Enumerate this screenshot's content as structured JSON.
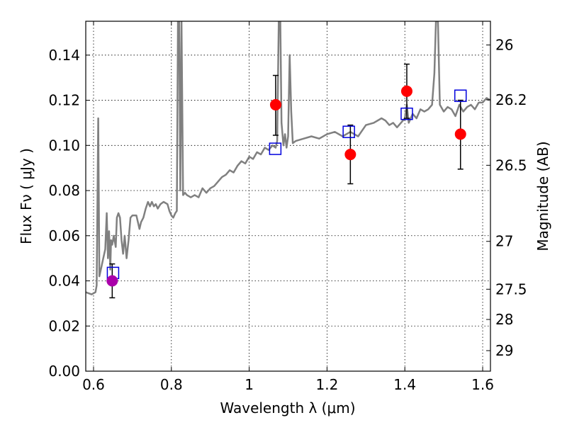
{
  "chart_data": {
    "type": "scatter",
    "title": "",
    "xlabel": "Wavelength  λ (μm)",
    "ylabel": "Flux  Fν  ( μJy )",
    "ylabel_right": "Magnitude (AB)",
    "xlim": [
      0.58,
      1.62
    ],
    "ylim": [
      0.0,
      0.155
    ],
    "x_ticks": [
      0.6,
      0.8,
      1.0,
      1.2,
      1.4,
      1.6
    ],
    "x_tick_labels": [
      "0.6",
      "0.8",
      "1",
      "1.2",
      "1.4",
      "1.6"
    ],
    "y_ticks": [
      0.0,
      0.02,
      0.04,
      0.06,
      0.08,
      0.1,
      0.12,
      0.14
    ],
    "y_tick_labels": [
      "0.00",
      "0.02",
      "0.04",
      "0.06",
      "0.08",
      "0.10",
      "0.12",
      "0.14"
    ],
    "right_ticks": [
      {
        "flux": 0.1445,
        "label": "26"
      },
      {
        "flux": 0.1202,
        "label": "26.2"
      },
      {
        "flux": 0.0912,
        "label": "26.5"
      },
      {
        "flux": 0.0575,
        "label": "27"
      },
      {
        "flux": 0.0363,
        "label": "27.5"
      },
      {
        "flux": 0.0229,
        "label": "28"
      },
      {
        "flux": 0.0091,
        "label": "29"
      }
    ],
    "grid": true,
    "colors": {
      "spectrum": "#808080",
      "observed": "#ff0000",
      "observed_special": "#aa00aa",
      "model": "#0000dd",
      "errorbar": "#000000"
    },
    "observed": [
      {
        "x": 0.648,
        "y": 0.04,
        "yerr": [
          0.0075,
          0.0075
        ],
        "special": true
      },
      {
        "x": 1.068,
        "y": 0.118,
        "yerr": [
          0.0135,
          0.013
        ]
      },
      {
        "x": 1.26,
        "y": 0.096,
        "yerr": [
          0.013,
          0.013
        ]
      },
      {
        "x": 1.405,
        "y": 0.124,
        "yerr": [
          0.012,
          0.012
        ]
      },
      {
        "x": 1.543,
        "y": 0.105,
        "yerr": [
          0.0155,
          0.015
        ]
      }
    ],
    "model": [
      {
        "x": 0.65,
        "y": 0.0435
      },
      {
        "x": 1.067,
        "y": 0.0985
      },
      {
        "x": 1.256,
        "y": 0.106
      },
      {
        "x": 1.405,
        "y": 0.114
      },
      {
        "x": 1.543,
        "y": 0.122
      }
    ],
    "spectrum": [
      [
        0.58,
        0.035
      ],
      [
        0.595,
        0.034
      ],
      [
        0.605,
        0.035
      ],
      [
        0.608,
        0.038
      ],
      [
        0.612,
        0.112
      ],
      [
        0.615,
        0.042
      ],
      [
        0.62,
        0.046
      ],
      [
        0.625,
        0.05
      ],
      [
        0.63,
        0.054
      ],
      [
        0.634,
        0.07
      ],
      [
        0.637,
        0.05
      ],
      [
        0.64,
        0.062
      ],
      [
        0.643,
        0.045
      ],
      [
        0.645,
        0.058
      ],
      [
        0.648,
        0.056
      ],
      [
        0.652,
        0.06
      ],
      [
        0.657,
        0.055
      ],
      [
        0.66,
        0.068
      ],
      [
        0.664,
        0.07
      ],
      [
        0.668,
        0.068
      ],
      [
        0.672,
        0.058
      ],
      [
        0.676,
        0.052
      ],
      [
        0.68,
        0.06
      ],
      [
        0.685,
        0.05
      ],
      [
        0.69,
        0.058
      ],
      [
        0.695,
        0.068
      ],
      [
        0.7,
        0.069
      ],
      [
        0.71,
        0.069
      ],
      [
        0.718,
        0.063
      ],
      [
        0.722,
        0.066
      ],
      [
        0.728,
        0.068
      ],
      [
        0.734,
        0.072
      ],
      [
        0.74,
        0.075
      ],
      [
        0.745,
        0.073
      ],
      [
        0.75,
        0.075
      ],
      [
        0.755,
        0.073
      ],
      [
        0.76,
        0.074
      ],
      [
        0.765,
        0.072
      ],
      [
        0.772,
        0.074
      ],
      [
        0.78,
        0.075
      ],
      [
        0.79,
        0.074
      ],
      [
        0.795,
        0.071
      ],
      [
        0.8,
        0.069
      ],
      [
        0.805,
        0.068
      ],
      [
        0.81,
        0.07
      ],
      [
        0.814,
        0.071
      ],
      [
        0.817,
        0.155
      ],
      [
        0.82,
        0.155
      ],
      [
        0.823,
        0.08
      ],
      [
        0.826,
        0.155
      ],
      [
        0.83,
        0.078
      ],
      [
        0.835,
        0.079
      ],
      [
        0.84,
        0.078
      ],
      [
        0.85,
        0.077
      ],
      [
        0.86,
        0.078
      ],
      [
        0.87,
        0.077
      ],
      [
        0.88,
        0.081
      ],
      [
        0.89,
        0.079
      ],
      [
        0.9,
        0.081
      ],
      [
        0.91,
        0.082
      ],
      [
        0.92,
        0.084
      ],
      [
        0.93,
        0.086
      ],
      [
        0.94,
        0.087
      ],
      [
        0.95,
        0.089
      ],
      [
        0.96,
        0.088
      ],
      [
        0.97,
        0.091
      ],
      [
        0.98,
        0.093
      ],
      [
        0.99,
        0.092
      ],
      [
        1.0,
        0.095
      ],
      [
        1.01,
        0.094
      ],
      [
        1.02,
        0.097
      ],
      [
        1.03,
        0.096
      ],
      [
        1.04,
        0.099
      ],
      [
        1.05,
        0.098
      ],
      [
        1.06,
        0.1
      ],
      [
        1.068,
        0.099
      ],
      [
        1.072,
        0.102
      ],
      [
        1.076,
        0.155
      ],
      [
        1.08,
        0.155
      ],
      [
        1.083,
        0.11
      ],
      [
        1.088,
        0.1
      ],
      [
        1.092,
        0.105
      ],
      [
        1.096,
        0.099
      ],
      [
        1.1,
        0.104
      ],
      [
        1.104,
        0.14
      ],
      [
        1.108,
        0.115
      ],
      [
        1.112,
        0.101
      ],
      [
        1.12,
        0.102
      ],
      [
        1.14,
        0.103
      ],
      [
        1.16,
        0.104
      ],
      [
        1.18,
        0.103
      ],
      [
        1.2,
        0.105
      ],
      [
        1.22,
        0.106
      ],
      [
        1.24,
        0.104
      ],
      [
        1.26,
        0.106
      ],
      [
        1.28,
        0.104
      ],
      [
        1.3,
        0.109
      ],
      [
        1.32,
        0.11
      ],
      [
        1.34,
        0.112
      ],
      [
        1.35,
        0.111
      ],
      [
        1.36,
        0.109
      ],
      [
        1.37,
        0.11
      ],
      [
        1.38,
        0.108
      ],
      [
        1.39,
        0.11
      ],
      [
        1.4,
        0.112
      ],
      [
        1.405,
        0.118
      ],
      [
        1.41,
        0.11
      ],
      [
        1.42,
        0.114
      ],
      [
        1.43,
        0.112
      ],
      [
        1.44,
        0.116
      ],
      [
        1.45,
        0.115
      ],
      [
        1.46,
        0.116
      ],
      [
        1.47,
        0.118
      ],
      [
        1.476,
        0.132
      ],
      [
        1.48,
        0.155
      ],
      [
        1.485,
        0.155
      ],
      [
        1.49,
        0.118
      ],
      [
        1.5,
        0.115
      ],
      [
        1.51,
        0.117
      ],
      [
        1.52,
        0.116
      ],
      [
        1.53,
        0.113
      ],
      [
        1.54,
        0.118
      ],
      [
        1.55,
        0.115
      ],
      [
        1.56,
        0.117
      ],
      [
        1.57,
        0.118
      ],
      [
        1.58,
        0.116
      ],
      [
        1.59,
        0.119
      ],
      [
        1.6,
        0.119
      ],
      [
        1.61,
        0.121
      ],
      [
        1.62,
        0.12
      ]
    ]
  }
}
